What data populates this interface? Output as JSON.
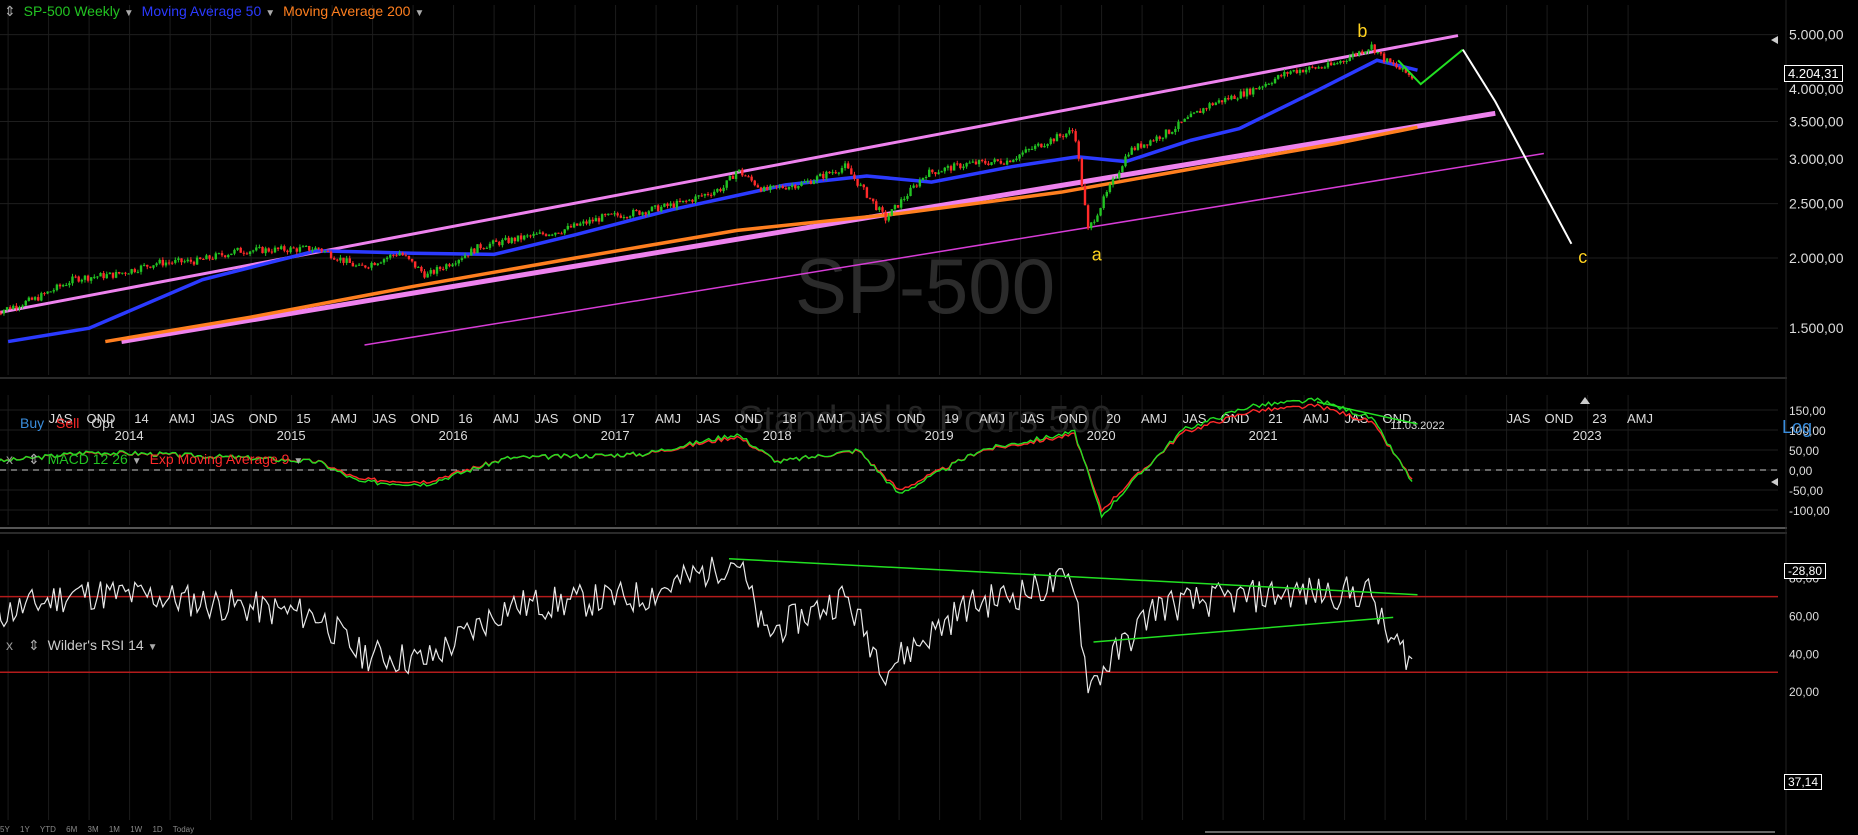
{
  "main": {
    "watermark": "SP-500",
    "watermark_sub": "Standard & Poors 500",
    "legend": [
      {
        "label": "SP-500 Weekly",
        "color": "#22c322"
      },
      {
        "label": "Moving Average 50",
        "color": "#2b3aff"
      },
      {
        "label": "Moving Average 200",
        "color": "#ff7f1f"
      }
    ],
    "y_ticks": [
      "5.000,00",
      "4.000,00",
      "3.500,00",
      "3.000,00",
      "2.500,00",
      "2.000,00",
      "1.500,00"
    ],
    "y_tick_values": [
      5000,
      4000,
      3500,
      3000,
      2500,
      2000,
      1500
    ],
    "ylim": [
      1400,
      5200
    ],
    "last_price": "4.204,31",
    "wave_labels": [
      "a",
      "b",
      "c"
    ],
    "quarter_labels": [
      "JAS",
      "OND",
      "14",
      "AMJ",
      "JAS",
      "OND",
      "15",
      "AMJ",
      "JAS",
      "OND",
      "16",
      "AMJ",
      "JAS",
      "OND",
      "17",
      "AMJ",
      "JAS",
      "OND",
      "18",
      "AMJ",
      "JAS",
      "OND",
      "19",
      "AMJ",
      "JAS",
      "OND",
      "20",
      "AMJ",
      "JAS",
      "OND",
      "21",
      "AMJ",
      "JAS",
      "OND",
      "JAS",
      "OND",
      "23",
      "AMJ"
    ],
    "year_labels": [
      "2014",
      "2015",
      "2016",
      "2017",
      "2018",
      "2019",
      "2020",
      "2021",
      "2023"
    ],
    "current_date": "11.03.2022",
    "buy": "Buy",
    "sell": "Sell",
    "opt": "Opt",
    "log_button": "Log",
    "price_series": [
      {
        "date": "2013-06",
        "close": 1600
      },
      {
        "date": "2013-09",
        "close": 1690
      },
      {
        "date": "2013-12",
        "close": 1840
      },
      {
        "date": "2014-03",
        "close": 1870
      },
      {
        "date": "2014-06",
        "close": 1960
      },
      {
        "date": "2014-09",
        "close": 1975
      },
      {
        "date": "2014-12",
        "close": 2060
      },
      {
        "date": "2015-03",
        "close": 2070
      },
      {
        "date": "2015-06",
        "close": 2080
      },
      {
        "date": "2015-09",
        "close": 1920
      },
      {
        "date": "2015-12",
        "close": 2045
      },
      {
        "date": "2016-02",
        "close": 1860
      },
      {
        "date": "2016-06",
        "close": 2100
      },
      {
        "date": "2016-09",
        "close": 2170
      },
      {
        "date": "2016-12",
        "close": 2240
      },
      {
        "date": "2017-03",
        "close": 2360
      },
      {
        "date": "2017-06",
        "close": 2420
      },
      {
        "date": "2017-09",
        "close": 2510
      },
      {
        "date": "2017-12",
        "close": 2670
      },
      {
        "date": "2018-01",
        "close": 2870
      },
      {
        "date": "2018-03",
        "close": 2640
      },
      {
        "date": "2018-06",
        "close": 2720
      },
      {
        "date": "2018-09",
        "close": 2910
      },
      {
        "date": "2018-12",
        "close": 2350
      },
      {
        "date": "2019-03",
        "close": 2830
      },
      {
        "date": "2019-06",
        "close": 2940
      },
      {
        "date": "2019-09",
        "close": 2980
      },
      {
        "date": "2019-12",
        "close": 3230
      },
      {
        "date": "2020-02",
        "close": 3380
      },
      {
        "date": "2020-03",
        "close": 2240
      },
      {
        "date": "2020-06",
        "close": 3100
      },
      {
        "date": "2020-09",
        "close": 3360
      },
      {
        "date": "2020-12",
        "close": 3750
      },
      {
        "date": "2021-03",
        "close": 3970
      },
      {
        "date": "2021-06",
        "close": 4300
      },
      {
        "date": "2021-09",
        "close": 4400
      },
      {
        "date": "2021-12",
        "close": 4770
      },
      {
        "date": "2022-01",
        "close": 4500
      },
      {
        "date": "2022-03",
        "close": 4204
      }
    ]
  },
  "macd": {
    "legend": [
      {
        "label": "MACD 12 26",
        "color": "#22c322"
      },
      {
        "label": "Exp Moving Average 9",
        "color": "#ff2a2a"
      }
    ],
    "y_ticks": [
      "150,00",
      "100,00",
      "50,00",
      "0,00",
      "-50,00",
      "-100,00"
    ],
    "y_tick_values": [
      150,
      100,
      50,
      0,
      -50,
      -100
    ],
    "ylim": [
      -125,
      175
    ],
    "last_value": "-28,80",
    "series": [
      {
        "date": "2013-06",
        "v": 20
      },
      {
        "date": "2014-01",
        "v": 45
      },
      {
        "date": "2014-06",
        "v": 40
      },
      {
        "date": "2015-01",
        "v": 30
      },
      {
        "date": "2015-06",
        "v": 20
      },
      {
        "date": "2015-09",
        "v": -30
      },
      {
        "date": "2016-02",
        "v": -35
      },
      {
        "date": "2016-08",
        "v": 30
      },
      {
        "date": "2017-06",
        "v": 40
      },
      {
        "date": "2018-01",
        "v": 90
      },
      {
        "date": "2018-04",
        "v": 20
      },
      {
        "date": "2018-10",
        "v": 50
      },
      {
        "date": "2019-01",
        "v": -60
      },
      {
        "date": "2019-07",
        "v": 50
      },
      {
        "date": "2020-02",
        "v": 95
      },
      {
        "date": "2020-04",
        "v": -115
      },
      {
        "date": "2020-06",
        "v": -40
      },
      {
        "date": "2020-10",
        "v": 100
      },
      {
        "date": "2021-03",
        "v": 160
      },
      {
        "date": "2021-08",
        "v": 175
      },
      {
        "date": "2021-12",
        "v": 130
      },
      {
        "date": "2022-03",
        "v": -28.8
      }
    ]
  },
  "rsi": {
    "legend": [
      {
        "label": "Wilder's RSI 14",
        "color": "#cccccc"
      }
    ],
    "y_ticks": [
      "80,00",
      "60,00",
      "40,00",
      "20,00"
    ],
    "y_tick_values": [
      80,
      60,
      40,
      20
    ],
    "ylim": [
      18,
      92
    ],
    "last_value": "37,14",
    "levels": [
      70,
      30
    ],
    "series": [
      {
        "date": "2013-06",
        "v": 60
      },
      {
        "date": "2013-12",
        "v": 72
      },
      {
        "date": "2014-06",
        "v": 70
      },
      {
        "date": "2014-12",
        "v": 65
      },
      {
        "date": "2015-06",
        "v": 60
      },
      {
        "date": "2015-09",
        "v": 40
      },
      {
        "date": "2016-02",
        "v": 36
      },
      {
        "date": "2016-08",
        "v": 65
      },
      {
        "date": "2017-06",
        "v": 70
      },
      {
        "date": "2018-01",
        "v": 90
      },
      {
        "date": "2018-03",
        "v": 50
      },
      {
        "date": "2018-09",
        "v": 70
      },
      {
        "date": "2018-12",
        "v": 32
      },
      {
        "date": "2019-06",
        "v": 65
      },
      {
        "date": "2020-02",
        "v": 79
      },
      {
        "date": "2020-03",
        "v": 22
      },
      {
        "date": "2020-08",
        "v": 65
      },
      {
        "date": "2021-06",
        "v": 72
      },
      {
        "date": "2021-12",
        "v": 72
      },
      {
        "date": "2022-01",
        "v": 50
      },
      {
        "date": "2022-03",
        "v": 37.14
      }
    ]
  },
  "timeframes": [
    "5Y",
    "1Y",
    "YTD",
    "6M",
    "3M",
    "1M",
    "1W",
    "1D",
    "Today"
  ],
  "chart_data": [
    {
      "type": "line",
      "x": [
        "2013-06",
        "2013-09",
        "2013-12",
        "2014-03",
        "2014-06",
        "2014-09",
        "2014-12",
        "2015-03",
        "2015-06",
        "2015-09",
        "2015-12",
        "2016-02",
        "2016-06",
        "2016-09",
        "2016-12",
        "2017-03",
        "2017-06",
        "2017-09",
        "2017-12",
        "2018-01",
        "2018-03",
        "2018-06",
        "2018-09",
        "2018-12",
        "2019-03",
        "2019-06",
        "2019-09",
        "2019-12",
        "2020-02",
        "2020-03",
        "2020-06",
        "2020-09",
        "2020-12",
        "2021-03",
        "2021-06",
        "2021-09",
        "2021-12",
        "2022-01",
        "2022-03"
      ],
      "series": [
        {
          "name": "SP-500 Weekly",
          "values": [
            1600,
            1690,
            1840,
            1870,
            1960,
            1975,
            2060,
            2070,
            2080,
            1920,
            2045,
            1860,
            2100,
            2170,
            2240,
            2360,
            2420,
            2510,
            2670,
            2870,
            2640,
            2720,
            2910,
            2350,
            2830,
            2940,
            2980,
            3230,
            3380,
            2240,
            3100,
            3360,
            3750,
            3970,
            4300,
            4400,
            4770,
            4500,
            4204
          ]
        }
      ],
      "ylim": [
        1400,
        5200
      ],
      "log_scale": true,
      "grid": true
    },
    {
      "type": "line",
      "x": [
        "2013-06",
        "2014-01",
        "2014-06",
        "2015-01",
        "2015-06",
        "2015-09",
        "2016-02",
        "2016-08",
        "2017-06",
        "2018-01",
        "2018-04",
        "2018-10",
        "2019-01",
        "2019-07",
        "2020-02",
        "2020-04",
        "2020-06",
        "2020-10",
        "2021-03",
        "2021-08",
        "2021-12",
        "2022-03"
      ],
      "series": [
        {
          "name": "MACD 12 26",
          "values": [
            20,
            45,
            40,
            30,
            20,
            -30,
            -35,
            30,
            40,
            90,
            20,
            50,
            -60,
            50,
            95,
            -115,
            -40,
            100,
            160,
            175,
            130,
            -28.8
          ]
        }
      ],
      "ylim": [
        -125,
        175
      ]
    },
    {
      "type": "line",
      "x": [
        "2013-06",
        "2013-12",
        "2014-06",
        "2014-12",
        "2015-06",
        "2015-09",
        "2016-02",
        "2016-08",
        "2017-06",
        "2018-01",
        "2018-03",
        "2018-09",
        "2018-12",
        "2019-06",
        "2020-02",
        "2020-03",
        "2020-08",
        "2021-06",
        "2021-12",
        "2022-01",
        "2022-03"
      ],
      "series": [
        {
          "name": "Wilder's RSI 14",
          "values": [
            60,
            72,
            70,
            65,
            60,
            40,
            36,
            65,
            70,
            90,
            50,
            70,
            32,
            65,
            79,
            22,
            65,
            72,
            72,
            50,
            37.14
          ]
        }
      ],
      "ylim": [
        18,
        92
      ]
    }
  ]
}
